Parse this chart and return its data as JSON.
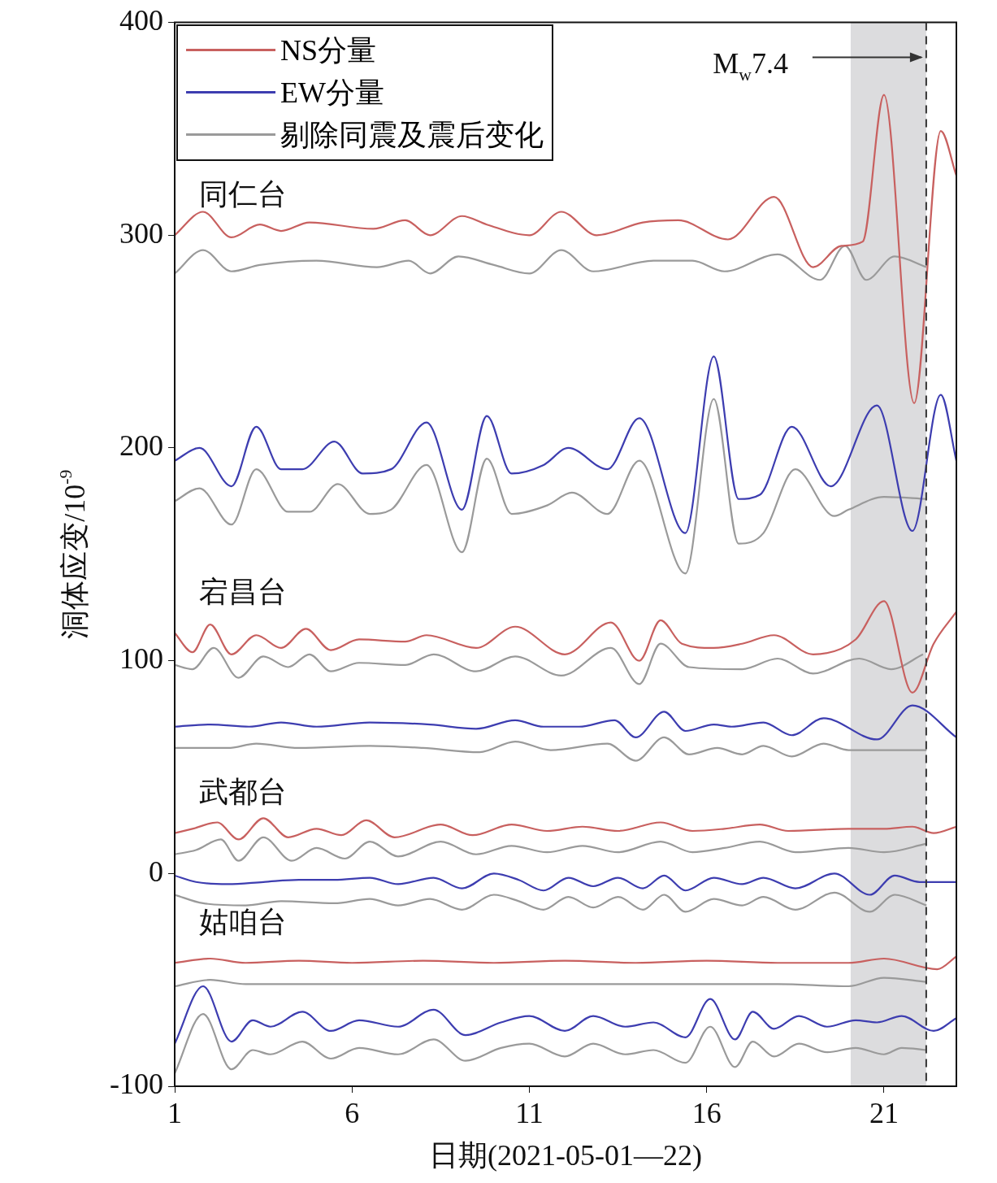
{
  "chart_data": {
    "type": "line",
    "xlabel": "日期(2021-05-01—22)",
    "ylabel": "洞体应变/10$^{-9}$",
    "xlim": [
      1,
      23.04
    ],
    "xticks": [
      1,
      6,
      11,
      16,
      21
    ],
    "ylim": [
      -100,
      400
    ],
    "yticks": [
      -100,
      0,
      100,
      200,
      300,
      400
    ],
    "grid": false,
    "legend": "top left",
    "marker": "none",
    "line_style": "solid",
    "bands": [
      {
        "axis": "x",
        "from": 20.06,
        "to": 22.19,
        "color": "#dcdcde"
      }
    ],
    "ref_lines": [
      {
        "axis": "x",
        "value": 22.19,
        "label": "M$_{w}$7.4",
        "line_style": "dashed",
        "color": "#333333"
      }
    ],
    "annotations": [
      "同仁台",
      "宕昌台",
      "武都台",
      "姑咱台"
    ],
    "series": [
      {
        "name": "NS分量",
        "color": "#c8605f",
        "x": [
          1,
          1.8,
          2.6,
          3.4,
          4,
          4.8,
          6.6,
          7.5,
          8.2,
          9.1,
          9.8,
          11,
          11.9,
          12.9,
          14.2,
          15.2,
          16.6,
          17.9,
          19,
          19.8,
          20.4,
          21,
          21.85,
          22.6,
          23.04
        ],
        "values": [
          300,
          311,
          299,
          305,
          302,
          306,
          303,
          307,
          300,
          309,
          305,
          300,
          311,
          300,
          306,
          307,
          298,
          318,
          285,
          295,
          297,
          366,
          221,
          349,
          328
        ]
      },
      {
        "color": "#9a9a9a",
        "x": [
          1,
          1.8,
          2.6,
          3.4,
          5,
          6.7,
          7.6,
          8.2,
          9,
          10,
          11,
          11.9,
          12.8,
          14.5,
          15.6,
          16.5,
          18,
          19.2,
          19.9,
          20.5,
          21.3,
          22.2
        ],
        "values": [
          282,
          293,
          283,
          286,
          288,
          285,
          288,
          282,
          290,
          286,
          282,
          293,
          283,
          288,
          288,
          283,
          291,
          279,
          295,
          279,
          290,
          285
        ]
      },
      {
        "name": "EW分量",
        "color": "#3d3db0",
        "x": [
          1,
          1.7,
          2.6,
          3.3,
          4,
          4.6,
          5.5,
          6.3,
          7.1,
          8.1,
          9.1,
          9.8,
          10.5,
          11.4,
          12.1,
          13.2,
          14.1,
          15.4,
          16.2,
          16.9,
          17.5,
          18.4,
          19.5,
          20.8,
          21.8,
          22.6,
          23.04
        ],
        "values": [
          194,
          200,
          182,
          210,
          190,
          190,
          203,
          188,
          190,
          212,
          171,
          215,
          188,
          192,
          200,
          190,
          214,
          160,
          243,
          176,
          178,
          210,
          182,
          220,
          161,
          225,
          194
        ]
      },
      {
        "name": "剔除同震及震后变化",
        "color": "#9a9a9a",
        "x": [
          1,
          1.7,
          2.6,
          3.3,
          4.2,
          4.8,
          5.6,
          6.5,
          7.1,
          8.1,
          9.1,
          9.8,
          10.5,
          11.5,
          12.2,
          13.2,
          14.1,
          15.4,
          16.2,
          16.9,
          17.6,
          18.5,
          19.6,
          20,
          21,
          22.2
        ],
        "values": [
          175,
          181,
          164,
          190,
          170,
          170,
          183,
          169,
          171,
          192,
          151,
          195,
          169,
          173,
          179,
          169,
          194,
          141,
          223,
          155,
          160,
          190,
          168,
          171,
          177,
          176
        ]
      },
      {
        "color": "#c8605f",
        "x": [
          1,
          1.5,
          2,
          2.6,
          3.3,
          4,
          4.7,
          5.4,
          6.2,
          7.5,
          8.1,
          9.5,
          10.6,
          12,
          13.3,
          14.1,
          14.7,
          15.3,
          16.2,
          17,
          17.9,
          19,
          20.2,
          21,
          21.8,
          22.4,
          23.04
        ],
        "values": [
          113,
          104,
          117,
          103,
          112,
          106,
          115,
          105,
          110,
          109,
          112,
          106,
          116,
          103,
          118,
          100,
          119,
          108,
          106,
          108,
          112,
          103,
          110,
          128,
          85,
          108,
          123
        ]
      },
      {
        "color": "#9a9a9a",
        "x": [
          1,
          1.5,
          2.1,
          2.8,
          3.5,
          4.2,
          4.8,
          5.4,
          6.2,
          7.5,
          8.3,
          9.5,
          10.6,
          11.9,
          13.3,
          14.1,
          14.7,
          15.5,
          17,
          18,
          19,
          20.3,
          21.2,
          22.1
        ],
        "values": [
          98,
          96,
          106,
          92,
          102,
          97,
          103,
          95,
          99,
          98,
          103,
          95,
          102,
          93,
          106,
          89,
          108,
          97,
          96,
          101,
          94,
          101,
          96,
          103
        ]
      },
      {
        "color": "#3d3db0",
        "x": [
          1,
          2,
          3.1,
          4,
          5,
          6.5,
          8.2,
          9.5,
          10.6,
          11.4,
          12.4,
          13.4,
          14,
          14.8,
          15.4,
          16.2,
          16.7,
          17.6,
          18.4,
          19.3,
          20.8,
          21.8,
          23.04
        ],
        "values": [
          69,
          70,
          69,
          71,
          69,
          71,
          70,
          68,
          72,
          69,
          69,
          72,
          64,
          76,
          67,
          70,
          69,
          71,
          65,
          73,
          63,
          79,
          64
        ]
      },
      {
        "color": "#9a9a9a",
        "x": [
          1,
          2.5,
          3.3,
          4.5,
          6.5,
          8,
          9.6,
          10.6,
          11.6,
          13.2,
          14,
          14.8,
          15.5,
          16.3,
          17,
          17.6,
          18.4,
          19.3,
          20,
          22.2
        ],
        "values": [
          59,
          59,
          61,
          59,
          60,
          59,
          57,
          62,
          58,
          61,
          53,
          64,
          56,
          59,
          56,
          60,
          55,
          61,
          58,
          58
        ]
      },
      {
        "color": "#c8605f",
        "x": [
          1,
          1.5,
          2.2,
          2.8,
          3.5,
          4.2,
          5,
          5.7,
          6.4,
          7.2,
          8.5,
          9.4,
          10.5,
          11.5,
          12.5,
          13.5,
          14.7,
          15.6,
          16.5,
          17.5,
          18.3,
          20,
          21,
          21.8,
          22.4,
          23.04
        ],
        "values": [
          19,
          21,
          24,
          16,
          26,
          17,
          21,
          18,
          25,
          17,
          23,
          18,
          23,
          20,
          22,
          20,
          24,
          20,
          21,
          23,
          20,
          21,
          21,
          22,
          19,
          22
        ]
      },
      {
        "color": "#9a9a9a",
        "x": [
          1,
          1.6,
          2.3,
          2.8,
          3.5,
          4.3,
          5,
          5.8,
          6.5,
          7.3,
          8.5,
          9.5,
          10.5,
          11.5,
          12.5,
          13.5,
          14.7,
          15.6,
          16.5,
          17.5,
          18.5,
          20,
          21,
          22.2
        ],
        "values": [
          9,
          11,
          16,
          6,
          17,
          6,
          12,
          7,
          15,
          8,
          15,
          9,
          13,
          10,
          13,
          10,
          15,
          10,
          12,
          15,
          10,
          12,
          10,
          14
        ]
      },
      {
        "color": "#3d3db0",
        "x": [
          1,
          1.6,
          2.5,
          3.5,
          4.5,
          5.5,
          6.5,
          7.3,
          8.3,
          9.1,
          10,
          10.7,
          11.4,
          12.1,
          12.8,
          13.5,
          14.2,
          14.8,
          15.4,
          16.2,
          17,
          17.6,
          18.5,
          19.6,
          20.6,
          21.3,
          22,
          23.04
        ],
        "values": [
          -1,
          -4,
          -5,
          -4,
          -3,
          -3,
          -2,
          -5,
          -2,
          -7,
          0,
          -3,
          -8,
          -2,
          -6,
          -2,
          -7,
          -1,
          -8,
          -2,
          -5,
          -2,
          -7,
          0,
          -10,
          -1,
          -4,
          -4
        ]
      },
      {
        "color": "#9a9a9a",
        "x": [
          1,
          1.8,
          3,
          4,
          5.5,
          6.5,
          7.3,
          8.2,
          9.1,
          10,
          10.7,
          11.4,
          12.1,
          12.8,
          13.5,
          14.2,
          14.8,
          15.4,
          16.2,
          17,
          17.6,
          18.5,
          19.6,
          20.6,
          21.3,
          22.2
        ],
        "values": [
          -10,
          -14,
          -15,
          -13,
          -14,
          -12,
          -15,
          -12,
          -17,
          -10,
          -13,
          -17,
          -11,
          -16,
          -11,
          -17,
          -10,
          -18,
          -12,
          -15,
          -11,
          -17,
          -9,
          -18,
          -10,
          -15
        ]
      },
      {
        "color": "#c8605f",
        "x": [
          1,
          2,
          3,
          4.5,
          6,
          8,
          10,
          12,
          14,
          16,
          18,
          20,
          21,
          22.5,
          23.04
        ],
        "values": [
          -42,
          -40,
          -42,
          -41,
          -42,
          -41,
          -42,
          -41,
          -42,
          -41,
          -42,
          -42,
          -40,
          -45,
          -39
        ]
      },
      {
        "color": "#9a9a9a",
        "x": [
          1,
          2,
          3,
          6,
          10,
          14,
          18,
          20,
          21,
          22.2
        ],
        "values": [
          -53,
          -50,
          -52,
          -52,
          -52,
          -52,
          -52,
          -53,
          -49,
          -51
        ]
      },
      {
        "color": "#3d3db0",
        "x": [
          1,
          1.8,
          2.6,
          3.2,
          3.7,
          4.6,
          5.4,
          6.2,
          7.3,
          8.3,
          9.2,
          10.2,
          11,
          12,
          12.8,
          13.7,
          14.5,
          15.4,
          16.1,
          16.8,
          17.3,
          17.9,
          18.6,
          19.4,
          20.2,
          20.8,
          21.5,
          22.4,
          23.04
        ],
        "values": [
          -80,
          -53,
          -79,
          -69,
          -72,
          -65,
          -74,
          -69,
          -72,
          -64,
          -76,
          -70,
          -67,
          -74,
          -67,
          -72,
          -70,
          -77,
          -59,
          -78,
          -65,
          -73,
          -67,
          -72,
          -69,
          -70,
          -67,
          -74,
          -68
        ]
      },
      {
        "color": "#9a9a9a",
        "x": [
          1,
          1.8,
          2.6,
          3.2,
          3.7,
          4.6,
          5.4,
          6.2,
          7.3,
          8.3,
          9.2,
          10.2,
          11,
          12,
          12.8,
          13.7,
          14.5,
          15.4,
          16.1,
          16.8,
          17.3,
          17.9,
          18.6,
          19.4,
          20.2,
          21,
          21.5,
          22.2
        ],
        "values": [
          -94,
          -66,
          -92,
          -83,
          -85,
          -79,
          -87,
          -82,
          -85,
          -78,
          -88,
          -82,
          -80,
          -86,
          -80,
          -85,
          -83,
          -89,
          -72,
          -91,
          -79,
          -86,
          -80,
          -84,
          -82,
          -85,
          -82,
          -83
        ]
      }
    ]
  }
}
